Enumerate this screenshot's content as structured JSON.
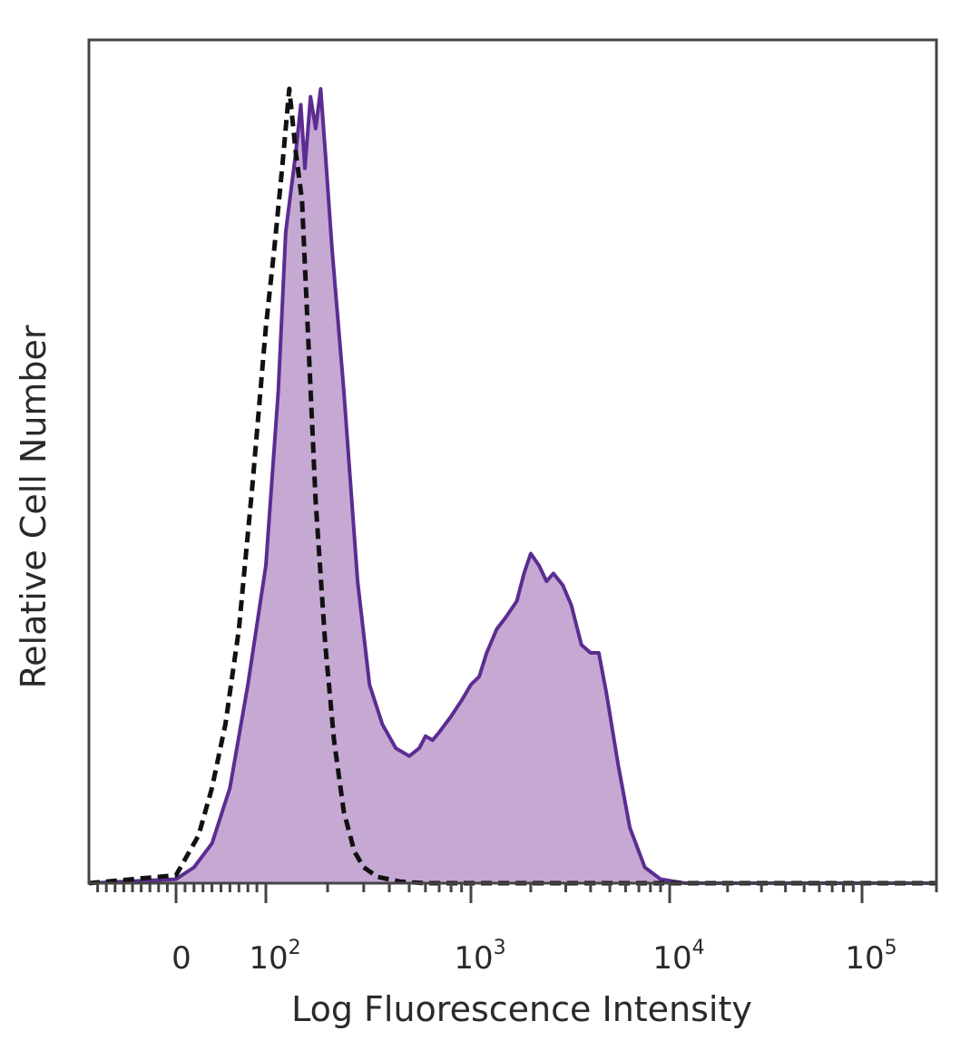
{
  "chart_data": {
    "type": "area",
    "title": "",
    "xlabel": "Log Fluorescence Intensity",
    "ylabel": "Relative Cell Number",
    "x_scale": "biexponential",
    "xlim": [
      -10,
      200000
    ],
    "ylim": [
      0,
      100
    ],
    "x_ticks": [
      {
        "value": 0,
        "base": "0",
        "exp": ""
      },
      {
        "value": 100,
        "base": "10",
        "exp": "2"
      },
      {
        "value": 1000,
        "base": "10",
        "exp": "3"
      },
      {
        "value": 10000,
        "base": "10",
        "exp": "4"
      },
      {
        "value": 100000,
        "base": "10",
        "exp": "5"
      }
    ],
    "grid": false,
    "legend": "none",
    "series": [
      {
        "style": "filled-solid",
        "stroke_color": "#5b2d91",
        "fill_color": "#c5a9d3",
        "points": [
          [
            -10,
            0
          ],
          [
            0,
            0.5
          ],
          [
            20,
            2
          ],
          [
            40,
            5
          ],
          [
            60,
            12
          ],
          [
            80,
            25
          ],
          [
            100,
            40
          ],
          [
            115,
            62
          ],
          [
            125,
            82
          ],
          [
            140,
            92
          ],
          [
            148,
            98
          ],
          [
            155,
            90
          ],
          [
            165,
            99
          ],
          [
            175,
            95
          ],
          [
            185,
            100
          ],
          [
            195,
            92
          ],
          [
            210,
            80
          ],
          [
            240,
            62
          ],
          [
            280,
            38
          ],
          [
            320,
            25
          ],
          [
            370,
            20
          ],
          [
            430,
            17
          ],
          [
            500,
            16
          ],
          [
            560,
            17
          ],
          [
            600,
            18.5
          ],
          [
            650,
            18
          ],
          [
            700,
            19
          ],
          [
            800,
            21
          ],
          [
            900,
            23
          ],
          [
            1000,
            25
          ],
          [
            1100,
            26
          ],
          [
            1200,
            29
          ],
          [
            1350,
            32
          ],
          [
            1500,
            33.5
          ],
          [
            1700,
            35.5
          ],
          [
            1850,
            39
          ],
          [
            2000,
            41.5
          ],
          [
            2200,
            40
          ],
          [
            2400,
            38
          ],
          [
            2600,
            39
          ],
          [
            2900,
            37.5
          ],
          [
            3200,
            35
          ],
          [
            3600,
            30
          ],
          [
            4000,
            29
          ],
          [
            4400,
            29
          ],
          [
            4800,
            24
          ],
          [
            5500,
            15
          ],
          [
            6300,
            7
          ],
          [
            7500,
            2
          ],
          [
            9000,
            0.5
          ],
          [
            12000,
            0
          ],
          [
            200000,
            0
          ]
        ]
      },
      {
        "style": "dashed",
        "stroke_color": "#111111",
        "points": [
          [
            -10,
            0
          ],
          [
            0,
            1
          ],
          [
            10,
            3
          ],
          [
            25,
            6
          ],
          [
            40,
            12
          ],
          [
            55,
            20
          ],
          [
            70,
            32
          ],
          [
            85,
            50
          ],
          [
            100,
            70
          ],
          [
            110,
            80
          ],
          [
            120,
            90
          ],
          [
            130,
            100
          ],
          [
            140,
            92
          ],
          [
            150,
            86
          ],
          [
            160,
            70
          ],
          [
            175,
            48
          ],
          [
            195,
            30
          ],
          [
            215,
            18
          ],
          [
            240,
            9
          ],
          [
            270,
            4
          ],
          [
            300,
            2
          ],
          [
            350,
            0.8
          ],
          [
            450,
            0.2
          ],
          [
            600,
            0
          ],
          [
            200000,
            0
          ]
        ]
      }
    ]
  }
}
